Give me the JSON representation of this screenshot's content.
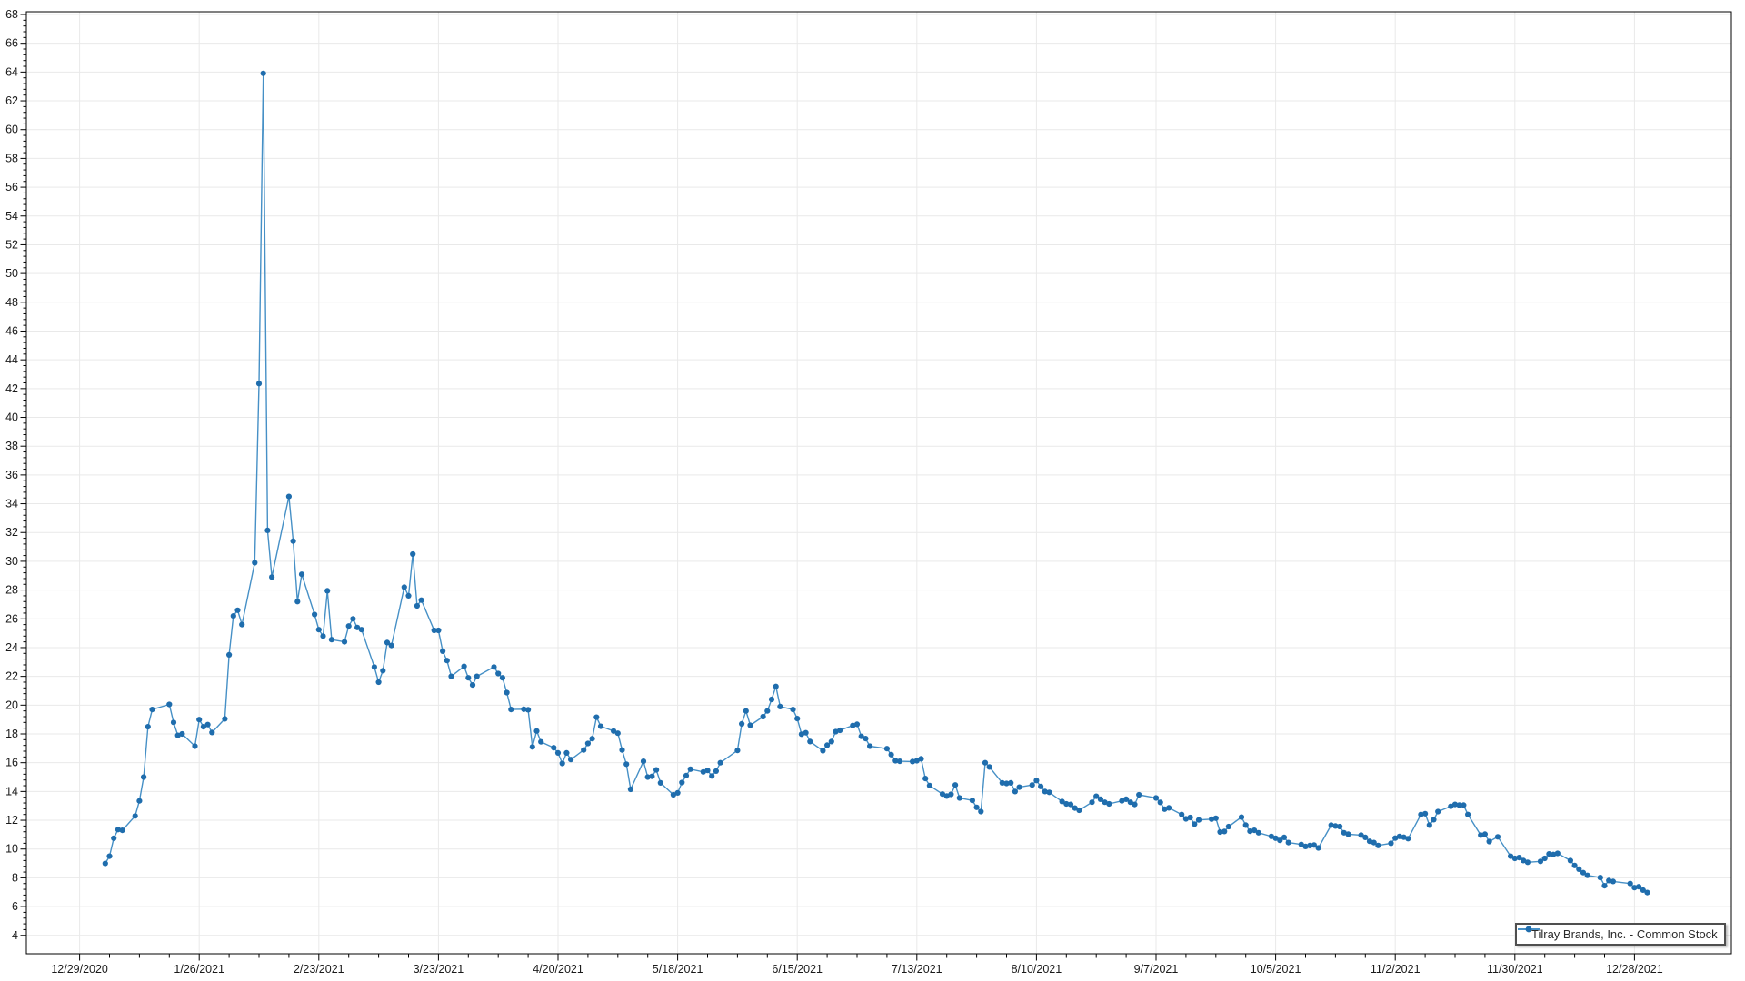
{
  "chart": {
    "colors": {
      "background": "#ffffff",
      "line": "#4690c6",
      "marker": "#1f6dad",
      "grid": "#e9e9e9",
      "axis": "#000000",
      "tick_label": "#1a1a1a",
      "legend_border": "#4f4f4f",
      "legend_text": "#2b2b2b"
    },
    "legend": {
      "label": "Tilray Brands, Inc. - Common Stock",
      "marker": "line-circle-icon"
    }
  },
  "chart_data": {
    "type": "line",
    "title": "",
    "xlabel": "",
    "ylabel": "",
    "grid": true,
    "legend_position": "bottom-right-inside",
    "ylim": [
      2.73,
      68.19
    ],
    "xlim_dates": [
      "12/12/2020",
      "1/15/2022"
    ],
    "y_ticks": [
      4,
      6,
      8,
      10,
      12,
      14,
      16,
      18,
      20,
      22,
      24,
      26,
      28,
      30,
      32,
      34,
      36,
      38,
      40,
      42,
      44,
      46,
      48,
      50,
      52,
      54,
      56,
      58,
      60,
      62,
      64,
      66,
      68
    ],
    "y_minor_step": 0.4,
    "x_minor_step_days": 7,
    "x_ticks": [
      {
        "date": "12/29/2020",
        "label": "12/29/2020"
      },
      {
        "date": "1/26/2021",
        "label": "1/26/2021"
      },
      {
        "date": "2/23/2021",
        "label": "2/23/2021"
      },
      {
        "date": "3/23/2021",
        "label": "3/23/2021"
      },
      {
        "date": "4/20/2021",
        "label": "4/20/2021"
      },
      {
        "date": "5/18/2021",
        "label": "5/18/2021"
      },
      {
        "date": "6/15/2021",
        "label": "6/15/2021"
      },
      {
        "date": "7/13/2021",
        "label": "7/13/2021"
      },
      {
        "date": "8/10/2021",
        "label": "8/10/2021"
      },
      {
        "date": "9/7/2021",
        "label": "9/7/2021"
      },
      {
        "date": "10/5/2021",
        "label": "10/5/2021"
      },
      {
        "date": "11/2/2021",
        "label": "11/2/2021"
      },
      {
        "date": "11/30/2021",
        "label": "11/30/2021"
      },
      {
        "date": "12/28/2021",
        "label": "12/28/2021"
      }
    ],
    "series": [
      {
        "name": "Tilray Brands, Inc. - Common Stock",
        "marker": "circle",
        "points": [
          [
            "1/4/2021",
            9.0
          ],
          [
            "1/5/2021",
            9.5
          ],
          [
            "1/6/2021",
            10.75
          ],
          [
            "1/7/2021",
            11.35
          ],
          [
            "1/8/2021",
            11.3
          ],
          [
            "1/11/2021",
            12.3
          ],
          [
            "1/12/2021",
            13.35
          ],
          [
            "1/13/2021",
            15.0
          ],
          [
            "1/14/2021",
            18.5
          ],
          [
            "1/15/2021",
            19.7
          ],
          [
            "1/19/2021",
            20.05
          ],
          [
            "1/20/2021",
            18.8
          ],
          [
            "1/21/2021",
            17.9
          ],
          [
            "1/22/2021",
            18.0
          ],
          [
            "1/25/2021",
            17.15
          ],
          [
            "1/26/2021",
            19.0
          ],
          [
            "1/27/2021",
            18.5
          ],
          [
            "1/28/2021",
            18.65
          ],
          [
            "1/29/2021",
            18.1
          ],
          [
            "2/1/2021",
            19.05
          ],
          [
            "2/2/2021",
            23.5
          ],
          [
            "2/3/2021",
            26.2
          ],
          [
            "2/4/2021",
            26.6
          ],
          [
            "2/5/2021",
            25.6
          ],
          [
            "2/8/2021",
            29.9
          ],
          [
            "2/9/2021",
            42.35
          ],
          [
            "2/10/2021",
            63.91
          ],
          [
            "2/11/2021",
            32.15
          ],
          [
            "2/12/2021",
            28.9
          ],
          [
            "2/16/2021",
            34.5
          ],
          [
            "2/17/2021",
            31.4
          ],
          [
            "2/18/2021",
            27.2
          ],
          [
            "2/19/2021",
            29.1
          ],
          [
            "2/22/2021",
            26.3
          ],
          [
            "2/23/2021",
            25.25
          ],
          [
            "2/24/2021",
            24.8
          ],
          [
            "2/25/2021",
            27.95
          ],
          [
            "2/26/2021",
            24.55
          ],
          [
            "3/1/2021",
            24.4
          ],
          [
            "3/2/2021",
            25.5
          ],
          [
            "3/3/2021",
            26.0
          ],
          [
            "3/4/2021",
            25.4
          ],
          [
            "3/5/2021",
            25.25
          ],
          [
            "3/8/2021",
            22.65
          ],
          [
            "3/9/2021",
            21.6
          ],
          [
            "3/10/2021",
            22.4
          ],
          [
            "3/11/2021",
            24.35
          ],
          [
            "3/12/2021",
            24.15
          ],
          [
            "3/15/2021",
            28.2
          ],
          [
            "3/16/2021",
            27.6
          ],
          [
            "3/17/2021",
            30.5
          ],
          [
            "3/18/2021",
            26.9
          ],
          [
            "3/19/2021",
            27.3
          ],
          [
            "3/22/2021",
            25.2
          ],
          [
            "3/23/2021",
            25.2
          ],
          [
            "3/24/2021",
            23.75
          ],
          [
            "3/25/2021",
            23.1
          ],
          [
            "3/26/2021",
            22.0
          ],
          [
            "3/29/2021",
            22.7
          ],
          [
            "3/30/2021",
            21.9
          ],
          [
            "3/31/2021",
            21.4
          ],
          [
            "4/1/2021",
            22.0
          ],
          [
            "4/5/2021",
            22.65
          ],
          [
            "4/6/2021",
            22.2
          ],
          [
            "4/7/2021",
            21.9
          ],
          [
            "4/8/2021",
            20.87
          ],
          [
            "4/9/2021",
            19.7
          ],
          [
            "4/12/2021",
            19.72
          ],
          [
            "4/13/2021",
            19.68
          ],
          [
            "4/14/2021",
            17.1
          ],
          [
            "4/15/2021",
            18.2
          ],
          [
            "4/16/2021",
            17.45
          ],
          [
            "4/19/2021",
            17.04
          ],
          [
            "4/20/2021",
            16.68
          ],
          [
            "4/21/2021",
            15.95
          ],
          [
            "4/22/2021",
            16.68
          ],
          [
            "4/23/2021",
            16.22
          ],
          [
            "4/26/2021",
            16.88
          ],
          [
            "4/27/2021",
            17.34
          ],
          [
            "4/28/2021",
            17.67
          ],
          [
            "4/29/2021",
            19.16
          ],
          [
            "4/30/2021",
            18.53
          ],
          [
            "5/3/2021",
            18.2
          ],
          [
            "5/4/2021",
            18.05
          ],
          [
            "5/5/2021",
            16.88
          ],
          [
            "5/6/2021",
            15.9
          ],
          [
            "5/7/2021",
            14.15
          ],
          [
            "5/10/2021",
            16.1
          ],
          [
            "5/11/2021",
            15.0
          ],
          [
            "5/12/2021",
            15.05
          ],
          [
            "5/13/2021",
            15.5
          ],
          [
            "5/14/2021",
            14.6
          ],
          [
            "5/17/2021",
            13.77
          ],
          [
            "5/18/2021",
            13.9
          ],
          [
            "5/19/2021",
            14.62
          ],
          [
            "5/20/2021",
            15.1
          ],
          [
            "5/21/2021",
            15.55
          ],
          [
            "5/24/2021",
            15.36
          ],
          [
            "5/25/2021",
            15.46
          ],
          [
            "5/26/2021",
            15.08
          ],
          [
            "5/27/2021",
            15.42
          ],
          [
            "5/28/2021",
            16.0
          ],
          [
            "6/1/2021",
            16.85
          ],
          [
            "6/2/2021",
            18.7
          ],
          [
            "6/3/2021",
            19.6
          ],
          [
            "6/4/2021",
            18.6
          ],
          [
            "6/7/2021",
            19.2
          ],
          [
            "6/8/2021",
            19.6
          ],
          [
            "6/9/2021",
            20.4
          ],
          [
            "6/10/2021",
            21.3
          ],
          [
            "6/11/2021",
            19.9
          ],
          [
            "6/14/2021",
            19.7
          ],
          [
            "6/15/2021",
            19.07
          ],
          [
            "6/16/2021",
            17.98
          ],
          [
            "6/17/2021",
            18.08
          ],
          [
            "6/18/2021",
            17.47
          ],
          [
            "6/21/2021",
            16.83
          ],
          [
            "6/22/2021",
            17.22
          ],
          [
            "6/23/2021",
            17.47
          ],
          [
            "6/24/2021",
            18.16
          ],
          [
            "6/25/2021",
            18.25
          ],
          [
            "6/28/2021",
            18.59
          ],
          [
            "6/29/2021",
            18.67
          ],
          [
            "6/30/2021",
            17.83
          ],
          [
            "7/1/2021",
            17.68
          ],
          [
            "7/2/2021",
            17.15
          ],
          [
            "7/6/2021",
            16.98
          ],
          [
            "7/7/2021",
            16.56
          ],
          [
            "7/8/2021",
            16.14
          ],
          [
            "7/9/2021",
            16.1
          ],
          [
            "7/12/2021",
            16.08
          ],
          [
            "7/13/2021",
            16.14
          ],
          [
            "7/14/2021",
            16.27
          ],
          [
            "7/15/2021",
            14.9
          ],
          [
            "7/16/2021",
            14.41
          ],
          [
            "7/19/2021",
            13.82
          ],
          [
            "7/20/2021",
            13.68
          ],
          [
            "7/21/2021",
            13.8
          ],
          [
            "7/22/2021",
            14.45
          ],
          [
            "7/23/2021",
            13.55
          ],
          [
            "7/26/2021",
            13.38
          ],
          [
            "7/27/2021",
            12.9
          ],
          [
            "7/28/2021",
            12.6
          ],
          [
            "7/29/2021",
            16.0
          ],
          [
            "7/30/2021",
            15.7
          ],
          [
            "8/2/2021",
            14.6
          ],
          [
            "8/3/2021",
            14.56
          ],
          [
            "8/4/2021",
            14.6
          ],
          [
            "8/5/2021",
            14.0
          ],
          [
            "8/6/2021",
            14.3
          ],
          [
            "8/9/2021",
            14.45
          ],
          [
            "8/10/2021",
            14.76
          ],
          [
            "8/11/2021",
            14.35
          ],
          [
            "8/12/2021",
            14.0
          ],
          [
            "8/13/2021",
            13.94
          ],
          [
            "8/16/2021",
            13.3
          ],
          [
            "8/17/2021",
            13.14
          ],
          [
            "8/18/2021",
            13.1
          ],
          [
            "8/19/2021",
            12.85
          ],
          [
            "8/20/2021",
            12.7
          ],
          [
            "8/23/2021",
            13.25
          ],
          [
            "8/24/2021",
            13.67
          ],
          [
            "8/25/2021",
            13.46
          ],
          [
            "8/26/2021",
            13.25
          ],
          [
            "8/27/2021",
            13.14
          ],
          [
            "8/30/2021",
            13.35
          ],
          [
            "8/31/2021",
            13.46
          ],
          [
            "9/1/2021",
            13.25
          ],
          [
            "9/2/2021",
            13.1
          ],
          [
            "9/3/2021",
            13.77
          ],
          [
            "9/7/2021",
            13.55
          ],
          [
            "9/8/2021",
            13.24
          ],
          [
            "9/9/2021",
            12.77
          ],
          [
            "9/10/2021",
            12.86
          ],
          [
            "9/13/2021",
            12.4
          ],
          [
            "9/14/2021",
            12.1
          ],
          [
            "9/15/2021",
            12.19
          ],
          [
            "9/16/2021",
            11.73
          ],
          [
            "9/17/2021",
            12.02
          ],
          [
            "9/20/2021",
            12.08
          ],
          [
            "9/21/2021",
            12.14
          ],
          [
            "9/22/2021",
            11.18
          ],
          [
            "9/23/2021",
            11.22
          ],
          [
            "9/24/2021",
            11.56
          ],
          [
            "9/27/2021",
            12.22
          ],
          [
            "9/28/2021",
            11.66
          ],
          [
            "9/29/2021",
            11.24
          ],
          [
            "9/30/2021",
            11.3
          ],
          [
            "10/1/2021",
            11.13
          ],
          [
            "10/4/2021",
            10.88
          ],
          [
            "10/5/2021",
            10.75
          ],
          [
            "10/6/2021",
            10.6
          ],
          [
            "10/7/2021",
            10.81
          ],
          [
            "10/8/2021",
            10.45
          ],
          [
            "10/11/2021",
            10.32
          ],
          [
            "10/12/2021",
            10.18
          ],
          [
            "10/13/2021",
            10.24
          ],
          [
            "10/14/2021",
            10.28
          ],
          [
            "10/15/2021",
            10.08
          ],
          [
            "10/18/2021",
            11.66
          ],
          [
            "10/19/2021",
            11.6
          ],
          [
            "10/20/2021",
            11.56
          ],
          [
            "10/21/2021",
            11.13
          ],
          [
            "10/22/2021",
            11.03
          ],
          [
            "10/25/2021",
            10.97
          ],
          [
            "10/26/2021",
            10.81
          ],
          [
            "10/27/2021",
            10.54
          ],
          [
            "10/28/2021",
            10.45
          ],
          [
            "10/29/2021",
            10.25
          ],
          [
            "11/1/2021",
            10.4
          ],
          [
            "11/2/2021",
            10.76
          ],
          [
            "11/3/2021",
            10.88
          ],
          [
            "11/4/2021",
            10.82
          ],
          [
            "11/5/2021",
            10.72
          ],
          [
            "11/8/2021",
            12.4
          ],
          [
            "11/9/2021",
            12.46
          ],
          [
            "11/10/2021",
            11.66
          ],
          [
            "11/11/2021",
            12.04
          ],
          [
            "11/12/2021",
            12.6
          ],
          [
            "11/15/2021",
            12.97
          ],
          [
            "11/16/2021",
            13.1
          ],
          [
            "11/17/2021",
            13.05
          ],
          [
            "11/18/2021",
            13.05
          ],
          [
            "11/19/2021",
            12.4
          ],
          [
            "11/22/2021",
            10.97
          ],
          [
            "11/23/2021",
            11.03
          ],
          [
            "11/24/2021",
            10.52
          ],
          [
            "11/26/2021",
            10.85
          ],
          [
            "11/29/2021",
            9.5
          ],
          [
            "11/30/2021",
            9.35
          ],
          [
            "12/1/2021",
            9.41
          ],
          [
            "12/2/2021",
            9.2
          ],
          [
            "12/3/2021",
            9.08
          ],
          [
            "12/6/2021",
            9.14
          ],
          [
            "12/7/2021",
            9.35
          ],
          [
            "12/8/2021",
            9.66
          ],
          [
            "12/9/2021",
            9.62
          ],
          [
            "12/10/2021",
            9.7
          ],
          [
            "12/13/2021",
            9.2
          ],
          [
            "12/14/2021",
            8.86
          ],
          [
            "12/15/2021",
            8.6
          ],
          [
            "12/16/2021",
            8.36
          ],
          [
            "12/17/2021",
            8.17
          ],
          [
            "12/20/2021",
            8.02
          ],
          [
            "12/21/2021",
            7.45
          ],
          [
            "12/22/2021",
            7.81
          ],
          [
            "12/23/2021",
            7.75
          ],
          [
            "12/27/2021",
            7.6
          ],
          [
            "12/28/2021",
            7.32
          ],
          [
            "12/29/2021",
            7.38
          ],
          [
            "12/30/2021",
            7.15
          ],
          [
            "12/31/2021",
            6.98
          ]
        ]
      }
    ]
  }
}
